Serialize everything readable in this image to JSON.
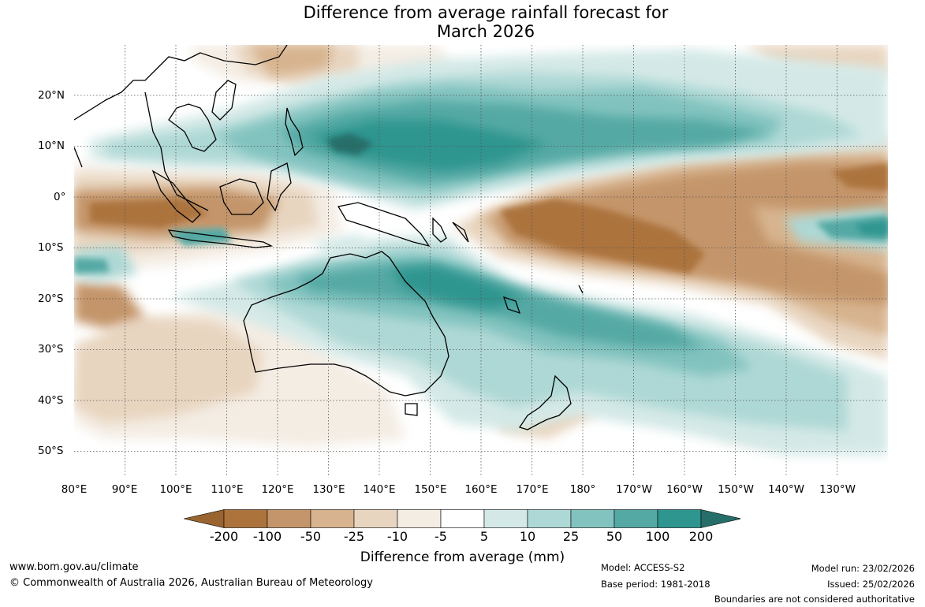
{
  "title": {
    "line1": "Difference from average rainfall forecast for",
    "line2": "March 2026"
  },
  "map": {
    "lon_ticks": [
      "80°E",
      "90°E",
      "100°E",
      "110°E",
      "120°E",
      "130°E",
      "140°E",
      "150°E",
      "160°E",
      "170°E",
      "180°",
      "170°W",
      "160°W",
      "150°W",
      "140°W",
      "130°W"
    ],
    "lat_ticks": [
      "20°N",
      "10°N",
      "0°",
      "10°S",
      "20°S",
      "30°S",
      "40°S",
      "50°S"
    ],
    "gridline_style": "dotted"
  },
  "legend": {
    "title": "Difference from average (mm)",
    "ticks": [
      "-200",
      "-100",
      "-50",
      "-25",
      "-10",
      "-5",
      "5",
      "10",
      "25",
      "50",
      "100",
      "200"
    ],
    "colors": [
      "#9a6430",
      "#ac733c",
      "#c4956a",
      "#d7b48f",
      "#e8d5c0",
      "#f4ede4",
      "#ffffff",
      "#d4e9e7",
      "#aed8d5",
      "#82c3bf",
      "#55a9a4",
      "#2e958f",
      "#266e69"
    ]
  },
  "footer": {
    "website": "www.bom.gov.au/climate",
    "copyright": "© Commonwealth of Australia 2026, Australian Bureau of Meteorology",
    "model": "Model: ACCESS-S2",
    "base_period": "Base period: 1981-2018",
    "model_run": "Model run: 23/02/2026",
    "issued": "Issued: 25/02/2026",
    "boundaries": "Boundaries are not considered authoritative"
  }
}
